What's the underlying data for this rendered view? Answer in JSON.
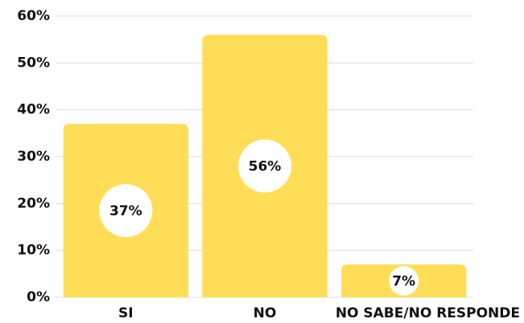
{
  "chart_data": {
    "type": "bar",
    "categories": [
      "SI",
      "NO",
      "NO SABE/NO RESPONDE"
    ],
    "values": [
      37,
      56,
      7
    ],
    "value_labels": [
      "37%",
      "56%",
      "7%"
    ],
    "color": "#ffdd57",
    "ylim": [
      0,
      60
    ],
    "yticks": [
      {
        "value": 0,
        "label": "0%"
      },
      {
        "value": 10,
        "label": "10%"
      },
      {
        "value": 20,
        "label": "20%"
      },
      {
        "value": 30,
        "label": "30%"
      },
      {
        "value": 40,
        "label": "40%"
      },
      {
        "value": 50,
        "label": "50%"
      },
      {
        "value": 60,
        "label": "60%"
      }
    ],
    "grid": true
  }
}
